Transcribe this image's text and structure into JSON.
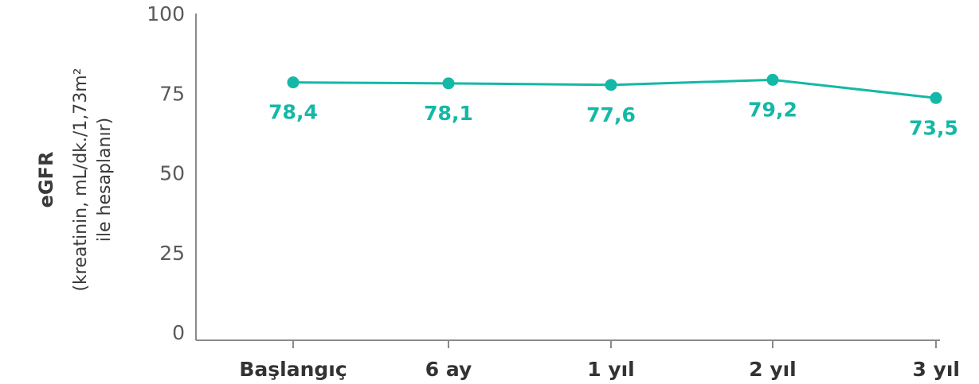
{
  "chart_data": {
    "type": "line",
    "categories": [
      "Başlangıç",
      "6 ay",
      "1 yıl",
      "2 yıl",
      "3 yıl"
    ],
    "series": [
      {
        "values": [
          78.4,
          78.1,
          77.6,
          79.2,
          73.5
        ],
        "color": "#14b8a6"
      }
    ],
    "data_labels": [
      "78,4",
      "78,1",
      "77,6",
      "79,2",
      "73,5"
    ],
    "ylim": [
      0,
      100
    ],
    "yticks": [
      0,
      25,
      50,
      75,
      100
    ],
    "ytick_labels": [
      "0",
      "25",
      "50",
      "75",
      "100"
    ],
    "ylabel": {
      "line1": "eGFR",
      "line2": "(kreatinin, mL/dk./1,73m²",
      "line3": "ile hesaplanır)"
    },
    "xlabel": "",
    "grid": false,
    "legend": "none"
  }
}
